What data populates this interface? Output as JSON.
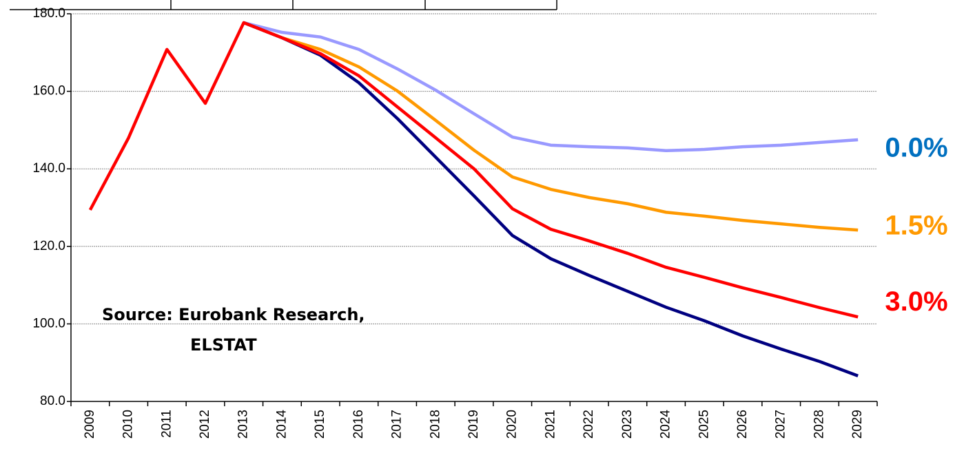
{
  "chart_data": {
    "type": "line",
    "categories": [
      "2009",
      "2010",
      "2011",
      "2012",
      "2013",
      "2014",
      "2015",
      "2016",
      "2017",
      "2018",
      "2019",
      "2020",
      "2021",
      "2022",
      "2023",
      "2024",
      "2025",
      "2026",
      "2027",
      "2028",
      "2029"
    ],
    "series": [
      {
        "name": "0.0%",
        "color": "#9999ff",
        "label_color": "#0070c0",
        "values": [
          null,
          null,
          null,
          null,
          177.7,
          175.2,
          174.0,
          170.8,
          165.8,
          160.3,
          154.2,
          148.2,
          146.1,
          145.7,
          145.4,
          144.7,
          145.0,
          145.7,
          146.1,
          146.8,
          147.5
        ]
      },
      {
        "name": "1.5%",
        "color": "#ff9900",
        "label_color": "#ff9900",
        "values": [
          null,
          null,
          null,
          null,
          177.7,
          173.8,
          170.8,
          166.3,
          160.1,
          152.5,
          144.8,
          137.9,
          134.7,
          132.6,
          131.0,
          128.8,
          127.8,
          126.7,
          125.8,
          124.9,
          124.2
        ]
      },
      {
        "color": "#000080",
        "values": [
          null,
          null,
          null,
          null,
          177.7,
          173.8,
          169.3,
          162.2,
          153.0,
          143.0,
          133.0,
          122.8,
          116.8,
          112.5,
          108.4,
          104.3,
          100.8,
          96.9,
          93.5,
          90.3,
          86.6
        ]
      },
      {
        "name": "3.0%",
        "color": "#ff0000",
        "label_color": "#ff0000",
        "values": [
          129.4,
          148.0,
          170.8,
          156.9,
          177.7,
          173.8,
          169.7,
          164.0,
          156.0,
          148.0,
          140.0,
          129.7,
          124.4,
          121.4,
          118.2,
          114.6,
          112.0,
          109.3,
          106.8,
          104.2,
          101.8
        ]
      }
    ],
    "ylim": [
      80,
      180
    ],
    "yticks": [
      {
        "value": 80,
        "label": "80.0"
      },
      {
        "value": 100,
        "label": "100.0"
      },
      {
        "value": 120,
        "label": "120.0"
      },
      {
        "value": 140,
        "label": "140.0"
      },
      {
        "value": 160,
        "label": "160.0"
      },
      {
        "value": 180,
        "label": "180.0"
      }
    ],
    "grid": true,
    "annotation": [
      "Source: Eurobank Research,",
      "ELSTAT"
    ]
  }
}
